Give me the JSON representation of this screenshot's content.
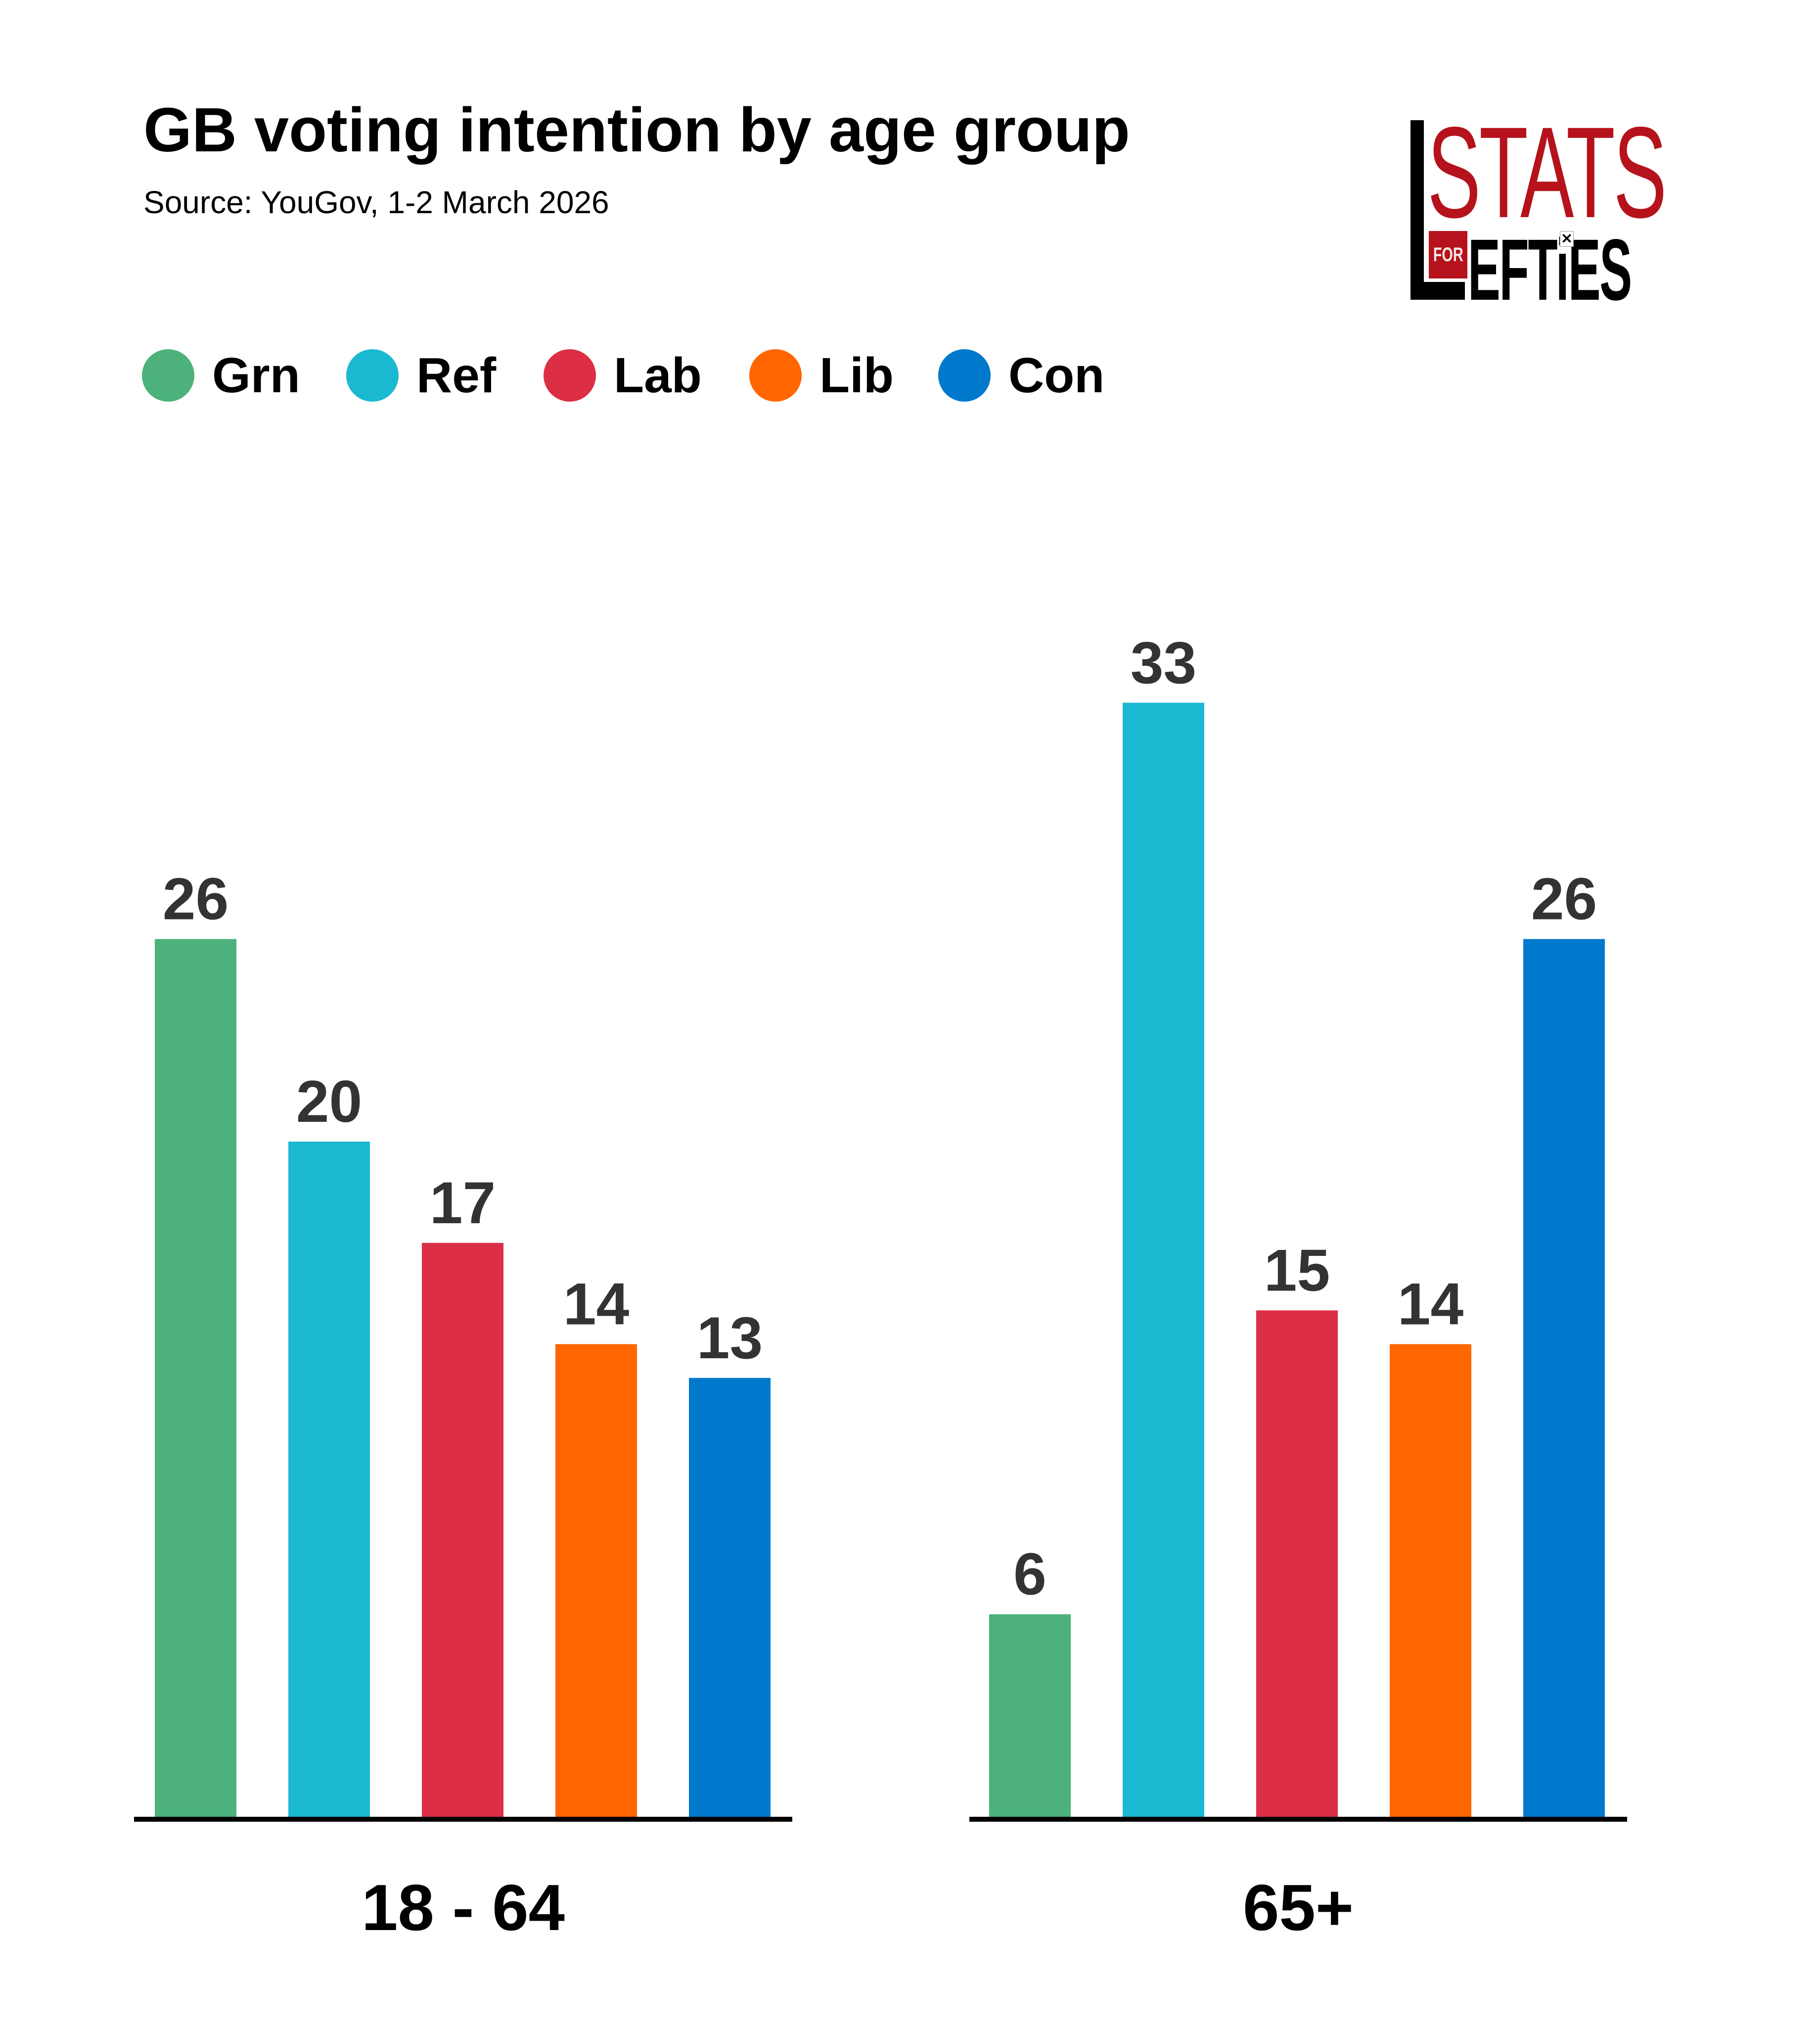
{
  "header": {
    "title": "GB voting intention by age group",
    "subtitle": "Source: YouGov, 1-2 March 2026"
  },
  "logo": {
    "line1": "STATS",
    "box_text": "FOR",
    "line2": "EFTiES",
    "ballot_mark": "✕",
    "brand_color": "#b5121b"
  },
  "legend": [
    {
      "label": "Grn",
      "color": "#4cb17a"
    },
    {
      "label": "Ref",
      "color": "#1bb8d2"
    },
    {
      "label": "Lab",
      "color": "#dc2f45"
    },
    {
      "label": "Lib",
      "color": "#ff6600"
    },
    {
      "label": "Con",
      "color": "#0079cd"
    }
  ],
  "chart_data": {
    "type": "bar",
    "title": "GB voting intention by age group",
    "subtitle": "Source: YouGov, 1-2 March 2026",
    "xlabel": "",
    "ylabel": "",
    "ylim": [
      0,
      33
    ],
    "grid": false,
    "legend_position": "top-left",
    "categories": [
      "18 - 64",
      "65+"
    ],
    "series": [
      {
        "name": "Grn",
        "color": "#4cb17a",
        "values": [
          26,
          6
        ]
      },
      {
        "name": "Ref",
        "color": "#1bb8d2",
        "values": [
          20,
          33
        ]
      },
      {
        "name": "Lab",
        "color": "#dc2f45",
        "values": [
          17,
          15
        ]
      },
      {
        "name": "Lib",
        "color": "#ff6600",
        "values": [
          14,
          14
        ]
      },
      {
        "name": "Con",
        "color": "#0079cd",
        "values": [
          13,
          26
        ]
      }
    ],
    "value_label_color": "#333333",
    "axis_color": "#000000"
  }
}
